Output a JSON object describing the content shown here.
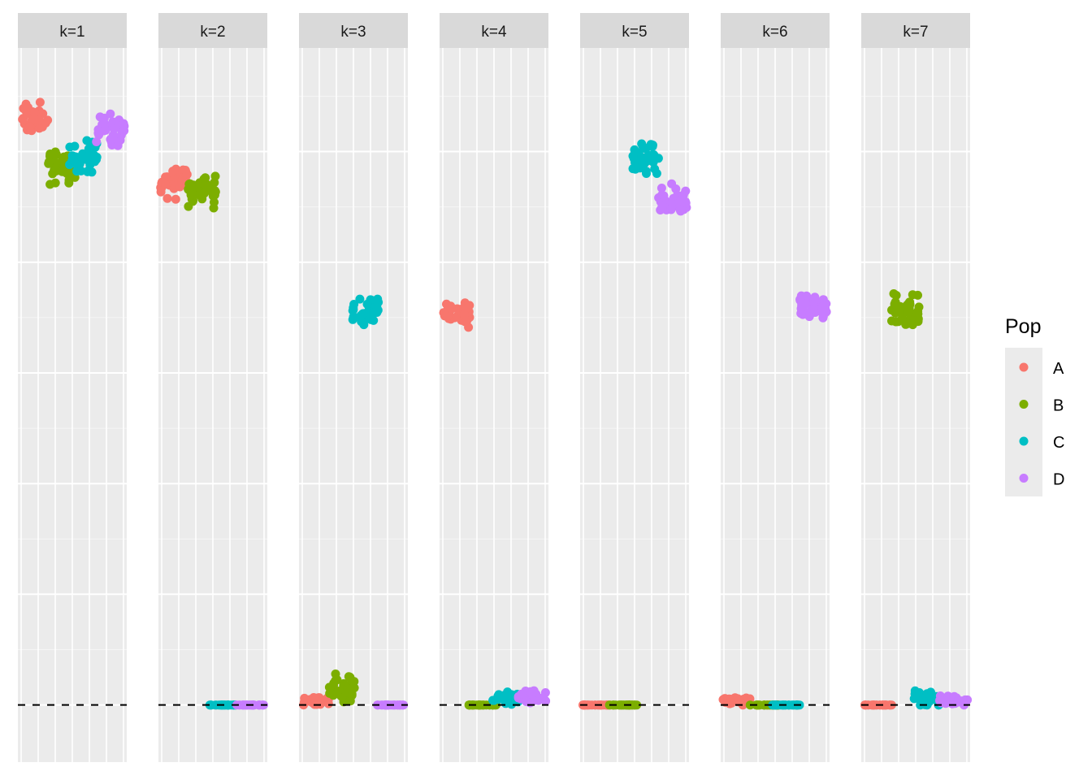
{
  "chart_data": {
    "type": "scatter",
    "facets": [
      "k=1",
      "k=2",
      "k=3",
      "k=4",
      "k=5",
      "k=6",
      "k=7"
    ],
    "ylim": [
      0,
      1
    ],
    "y_reference_line": 0.08,
    "grid": true,
    "legend": {
      "title": "Pop",
      "position": "right",
      "entries": [
        {
          "label": "A",
          "color": "#F8766D"
        },
        {
          "label": "B",
          "color": "#7CAE00"
        },
        {
          "label": "C",
          "color": "#00BFC4"
        },
        {
          "label": "D",
          "color": "#C77CFF"
        }
      ]
    },
    "panels": [
      {
        "facet": "k=1",
        "groups": [
          {
            "pop": "A",
            "x_center": 0.15,
            "y_center": 0.9,
            "y_spread": 0.02,
            "n": 40
          },
          {
            "pop": "B",
            "x_center": 0.4,
            "y_center": 0.833,
            "y_spread": 0.02,
            "n": 40
          },
          {
            "pop": "C",
            "x_center": 0.6,
            "y_center": 0.848,
            "y_spread": 0.02,
            "n": 40
          },
          {
            "pop": "D",
            "x_center": 0.85,
            "y_center": 0.882,
            "y_spread": 0.02,
            "n": 40
          }
        ]
      },
      {
        "facet": "k=2",
        "groups": [
          {
            "pop": "A",
            "x_center": 0.15,
            "y_center": 0.815,
            "y_spread": 0.02,
            "n": 40
          },
          {
            "pop": "B",
            "x_center": 0.4,
            "y_center": 0.8,
            "y_spread": 0.02,
            "n": 40
          },
          {
            "pop": "C",
            "x_center": 0.6,
            "y_center": 0.08,
            "y_spread": 0,
            "n": 30
          },
          {
            "pop": "D",
            "x_center": 0.85,
            "y_center": 0.08,
            "y_spread": 0,
            "n": 30
          }
        ]
      },
      {
        "facet": "k=3",
        "groups": [
          {
            "pop": "A",
            "x_center": 0.15,
            "y_center": 0.086,
            "y_spread": 0.006,
            "n": 30
          },
          {
            "pop": "B",
            "x_center": 0.4,
            "y_center": 0.105,
            "y_spread": 0.015,
            "n": 40
          },
          {
            "pop": "C",
            "x_center": 0.6,
            "y_center": 0.63,
            "y_spread": 0.018,
            "n": 40
          },
          {
            "pop": "D",
            "x_center": 0.85,
            "y_center": 0.08,
            "y_spread": 0,
            "n": 30
          }
        ]
      },
      {
        "facet": "k=4",
        "groups": [
          {
            "pop": "A",
            "x_center": 0.15,
            "y_center": 0.63,
            "y_spread": 0.018,
            "n": 40
          },
          {
            "pop": "B",
            "x_center": 0.4,
            "y_center": 0.08,
            "y_spread": 0,
            "n": 30
          },
          {
            "pop": "C",
            "x_center": 0.6,
            "y_center": 0.09,
            "y_spread": 0.008,
            "n": 30
          },
          {
            "pop": "D",
            "x_center": 0.85,
            "y_center": 0.09,
            "y_spread": 0.008,
            "n": 30
          }
        ]
      },
      {
        "facet": "k=5",
        "groups": [
          {
            "pop": "A",
            "x_center": 0.15,
            "y_center": 0.08,
            "y_spread": 0,
            "n": 30
          },
          {
            "pop": "B",
            "x_center": 0.4,
            "y_center": 0.08,
            "y_spread": 0,
            "n": 30
          },
          {
            "pop": "C",
            "x_center": 0.6,
            "y_center": 0.845,
            "y_spread": 0.018,
            "n": 40
          },
          {
            "pop": "D",
            "x_center": 0.85,
            "y_center": 0.785,
            "y_spread": 0.018,
            "n": 40
          }
        ]
      },
      {
        "facet": "k=6",
        "groups": [
          {
            "pop": "A",
            "x_center": 0.15,
            "y_center": 0.085,
            "y_spread": 0.006,
            "n": 30
          },
          {
            "pop": "B",
            "x_center": 0.4,
            "y_center": 0.08,
            "y_spread": 0,
            "n": 30
          },
          {
            "pop": "C",
            "x_center": 0.6,
            "y_center": 0.08,
            "y_spread": 0,
            "n": 30
          },
          {
            "pop": "D",
            "x_center": 0.85,
            "y_center": 0.635,
            "y_spread": 0.015,
            "n": 40
          }
        ]
      },
      {
        "facet": "k=7",
        "groups": [
          {
            "pop": "A",
            "x_center": 0.15,
            "y_center": 0.08,
            "y_spread": 0,
            "n": 30
          },
          {
            "pop": "B",
            "x_center": 0.4,
            "y_center": 0.63,
            "y_spread": 0.02,
            "n": 40
          },
          {
            "pop": "C",
            "x_center": 0.6,
            "y_center": 0.09,
            "y_spread": 0.012,
            "n": 30
          },
          {
            "pop": "D",
            "x_center": 0.85,
            "y_center": 0.086,
            "y_spread": 0.006,
            "n": 30
          }
        ]
      }
    ]
  }
}
